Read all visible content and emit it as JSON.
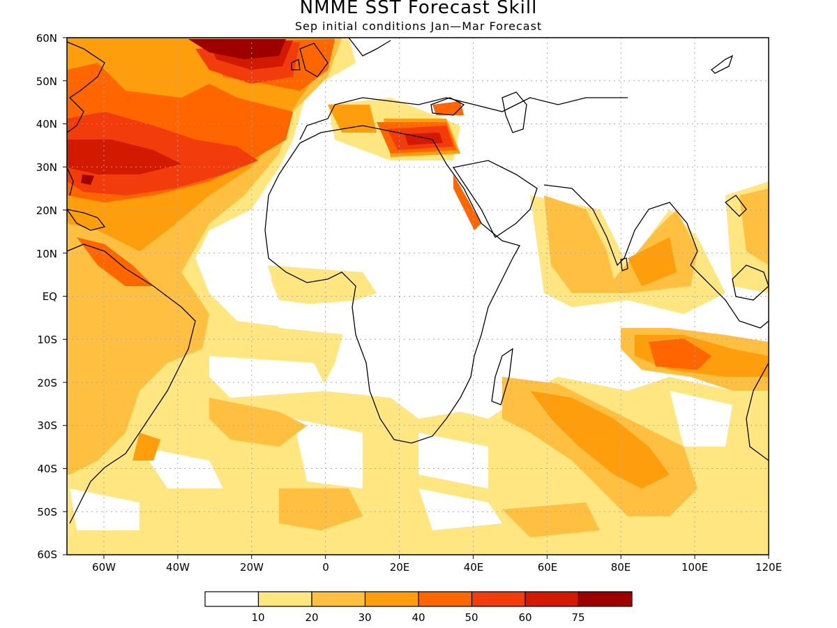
{
  "title": "NMME SST Forecast Skill",
  "subtitle": "Sep initial conditions  Jan—Mar Forecast",
  "map": {
    "extent": {
      "lon": [
        -70,
        120
      ],
      "lat": [
        -60,
        60
      ]
    },
    "lat_labels": [
      "60N",
      "50N",
      "40N",
      "30N",
      "20N",
      "10N",
      "EQ",
      "10S",
      "20S",
      "30S",
      "40S",
      "50S",
      "60S"
    ],
    "lon_labels": [
      "60W",
      "40W",
      "20W",
      "0",
      "20E",
      "40E",
      "60E",
      "80E",
      "100E",
      "120E"
    ],
    "grid": "dotted"
  },
  "colorbar": {
    "colors": [
      "#ffffff",
      "#ffe680",
      "#ffbf40",
      "#ff9e0c",
      "#ff6600",
      "#f23c0c",
      "#d11a00",
      "#9e0000"
    ],
    "tick_labels": [
      "10",
      "20",
      "30",
      "40",
      "50",
      "60",
      "75"
    ]
  }
}
